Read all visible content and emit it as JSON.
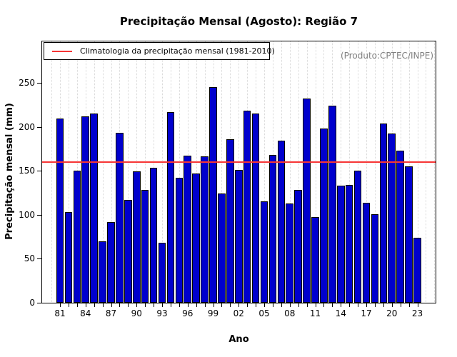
{
  "chart": {
    "title": "Precipitação Mensal (Agosto): Região 7",
    "annotation": "(Produto:CPTEC/INPE)",
    "legend_label": "Climatologia da precipitação mensal (1981-2010)",
    "xlabel": "Ano",
    "ylabel": "Precipitação mensal (mm)"
  },
  "chart_data": {
    "type": "bar",
    "title": "Precipitação Mensal (Agosto): Região 7",
    "xlabel": "Ano",
    "ylabel": "Precipitação mensal (mm)",
    "annotation": "(Produto:CPTEC/INPE)",
    "legend": [
      "Climatologia da precipitação mensal (1981-2010)"
    ],
    "legend_position": "topleft",
    "grid": "vertical-dotted",
    "ylim": [
      0,
      270
    ],
    "yticks": [
      0,
      50,
      100,
      150,
      200,
      250
    ],
    "xtick_labels": [
      "81",
      "84",
      "87",
      "90",
      "93",
      "96",
      "99",
      "02",
      "05",
      "08",
      "11",
      "14",
      "17",
      "20",
      "23"
    ],
    "categories": [
      1981,
      1982,
      1983,
      1984,
      1985,
      1986,
      1987,
      1988,
      1989,
      1990,
      1991,
      1992,
      1993,
      1994,
      1995,
      1996,
      1997,
      1998,
      1999,
      2000,
      2001,
      2002,
      2003,
      2004,
      2005,
      2006,
      2007,
      2008,
      2009,
      2010,
      2011,
      2012,
      2013,
      2014,
      2015,
      2016,
      2017,
      2018,
      2019,
      2020,
      2021,
      2022,
      2023
    ],
    "values": [
      209,
      103,
      150,
      212,
      215,
      70,
      92,
      193,
      117,
      149,
      128,
      153,
      68,
      217,
      142,
      167,
      147,
      166,
      245,
      124,
      186,
      151,
      218,
      215,
      115,
      168,
      184,
      113,
      128,
      232,
      97,
      198,
      224,
      133,
      134,
      150,
      114,
      101,
      204,
      192,
      173,
      155,
      74
    ],
    "climatology_value": 160,
    "colors": {
      "bar_fill": "#0000CD",
      "bar_border": "#000000",
      "climatology_line": "#F63535",
      "grid_line": "#D8D8D8",
      "annotation_text": "#808080",
      "axis_text": "#000000"
    }
  }
}
